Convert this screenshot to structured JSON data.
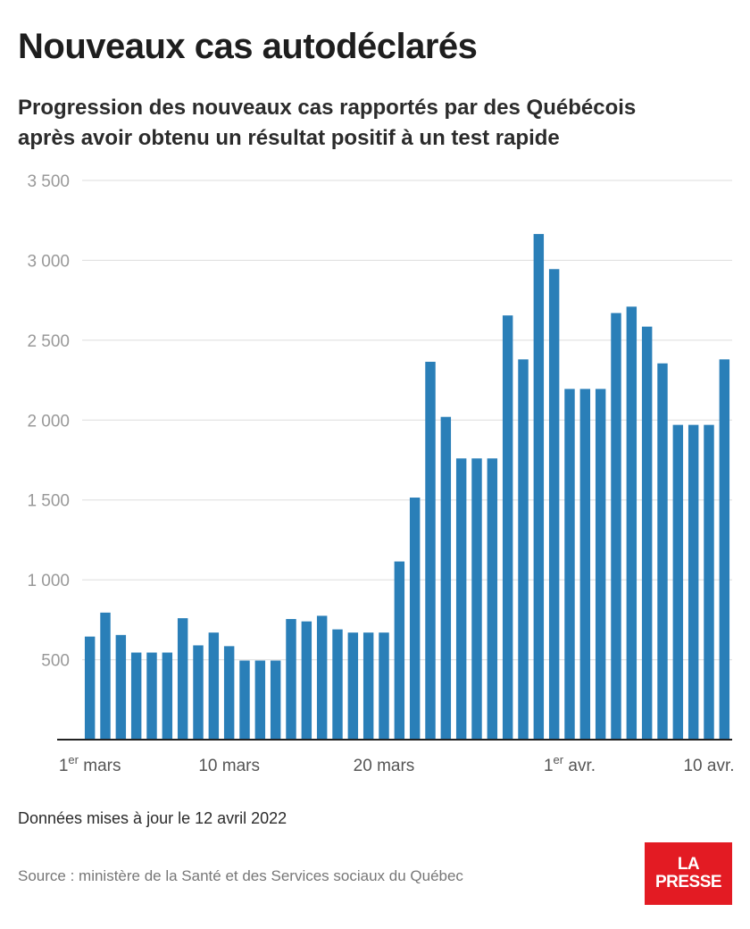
{
  "header": {
    "title": "Nouveaux cas autodéclarés",
    "subtitle_line1": "Progression des nouveaux cas rapportés par des Québécois",
    "subtitle_line2": "après avoir obtenu un résultat positif à un test rapide"
  },
  "footer": {
    "note": "Données mises à jour le 12 avril 2022",
    "source": "Source : ministère de la Santé et des Services sociaux du Québec"
  },
  "logo": {
    "line1": "LA",
    "line2": "PRESSE"
  },
  "colors": {
    "bar": "#2a7fb8",
    "grid": "#dddddd",
    "axis": "#222222",
    "tick_text": "#999999",
    "logo_bg": "#e31b23"
  },
  "chart_data": {
    "type": "bar",
    "title": "Nouveaux cas autodéclarés",
    "xlabel": "",
    "ylabel": "",
    "ylim": [
      0,
      3500
    ],
    "grid": true,
    "legend": "none",
    "yticks": [
      500,
      1000,
      1500,
      2000,
      2500,
      3000,
      3500
    ],
    "ytick_labels": [
      "500",
      "1 000",
      "1 500",
      "2 000",
      "2 500",
      "3 000",
      "3 500"
    ],
    "xtick_labels": [
      {
        "day_index": 0,
        "main": "1",
        "sup": "er",
        "rest": " mars"
      },
      {
        "day_index": 9,
        "main": "10 mars",
        "sup": "",
        "rest": ""
      },
      {
        "day_index": 19,
        "main": "20 mars",
        "sup": "",
        "rest": ""
      },
      {
        "day_index": 31,
        "main": "1",
        "sup": "er",
        "rest": " avr."
      },
      {
        "day_index": 40,
        "main": "10 avr.",
        "sup": "",
        "rest": ""
      }
    ],
    "categories": [
      "2022-03-01",
      "2022-03-02",
      "2022-03-03",
      "2022-03-04",
      "2022-03-05",
      "2022-03-06",
      "2022-03-07",
      "2022-03-08",
      "2022-03-09",
      "2022-03-10",
      "2022-03-11",
      "2022-03-12",
      "2022-03-13",
      "2022-03-14",
      "2022-03-15",
      "2022-03-16",
      "2022-03-17",
      "2022-03-18",
      "2022-03-19",
      "2022-03-20",
      "2022-03-21",
      "2022-03-22",
      "2022-03-23",
      "2022-03-24",
      "2022-03-25",
      "2022-03-26",
      "2022-03-27",
      "2022-03-28",
      "2022-03-29",
      "2022-03-30",
      "2022-03-31",
      "2022-04-01",
      "2022-04-02",
      "2022-04-03",
      "2022-04-04",
      "2022-04-05",
      "2022-04-06",
      "2022-04-07",
      "2022-04-08",
      "2022-04-09",
      "2022-04-10",
      "2022-04-11"
    ],
    "values": [
      645,
      795,
      655,
      545,
      545,
      545,
      760,
      590,
      670,
      585,
      495,
      495,
      495,
      755,
      740,
      775,
      690,
      670,
      670,
      670,
      1115,
      1515,
      2365,
      2020,
      1760,
      1760,
      1760,
      2655,
      2380,
      3165,
      2945,
      2195,
      2195,
      2195,
      2670,
      2710,
      2585,
      2355,
      1970,
      1970,
      1970,
      2380
    ]
  }
}
